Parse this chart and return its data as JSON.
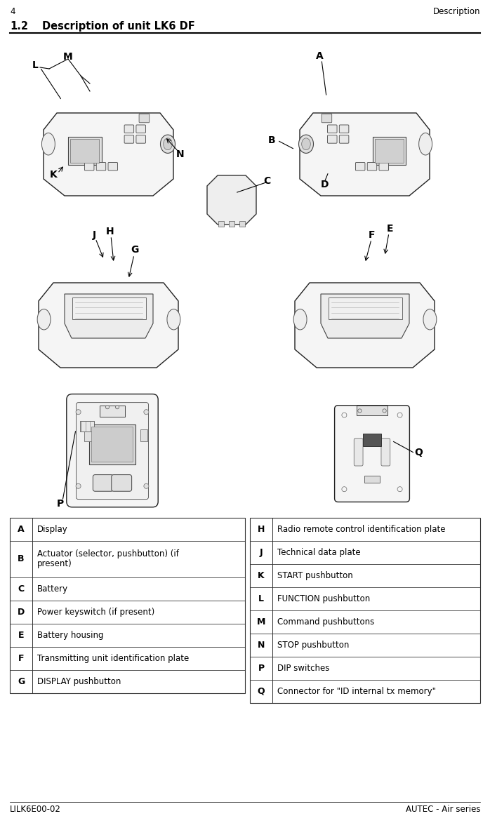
{
  "page_number": "4",
  "page_header_right": "Description",
  "section": "1.2",
  "section_title": "Description of unit LK6 DF",
  "footer_left": "LILK6E00-02",
  "footer_right": "AUTEC - Air series",
  "left_table": [
    {
      "key": "A",
      "value": "Display"
    },
    {
      "key": "B",
      "value": "Actuator (selector, pushbutton) (if\npresent)"
    },
    {
      "key": "C",
      "value": "Battery"
    },
    {
      "key": "D",
      "value": "Power keyswitch (if present)"
    },
    {
      "key": "E",
      "value": "Battery housing"
    },
    {
      "key": "F",
      "value": "Transmitting unit identification plate"
    },
    {
      "key": "G",
      "value": "DISPLAY pushbutton"
    }
  ],
  "right_table": [
    {
      "key": "H",
      "value": "Radio remote control identification plate"
    },
    {
      "key": "J",
      "value": "Technical data plate"
    },
    {
      "key": "K",
      "value": "START pushbutton"
    },
    {
      "key": "L",
      "value": "FUNCTION pushbutton"
    },
    {
      "key": "M",
      "value": "Command pushbuttons"
    },
    {
      "key": "N",
      "value": "STOP pushbutton"
    },
    {
      "key": "P",
      "value": "DIP switches"
    },
    {
      "key": "Q",
      "value": "Connector for \"ID internal tx memory\""
    }
  ],
  "bg_color": "#ffffff",
  "text_color": "#000000",
  "line_color": "#000000",
  "header_font_size": 8.5,
  "section_font_size": 10.5,
  "table_key_font_size": 9,
  "table_val_font_size": 8.5,
  "footer_font_size": 8.5,
  "label_font_size": 10
}
